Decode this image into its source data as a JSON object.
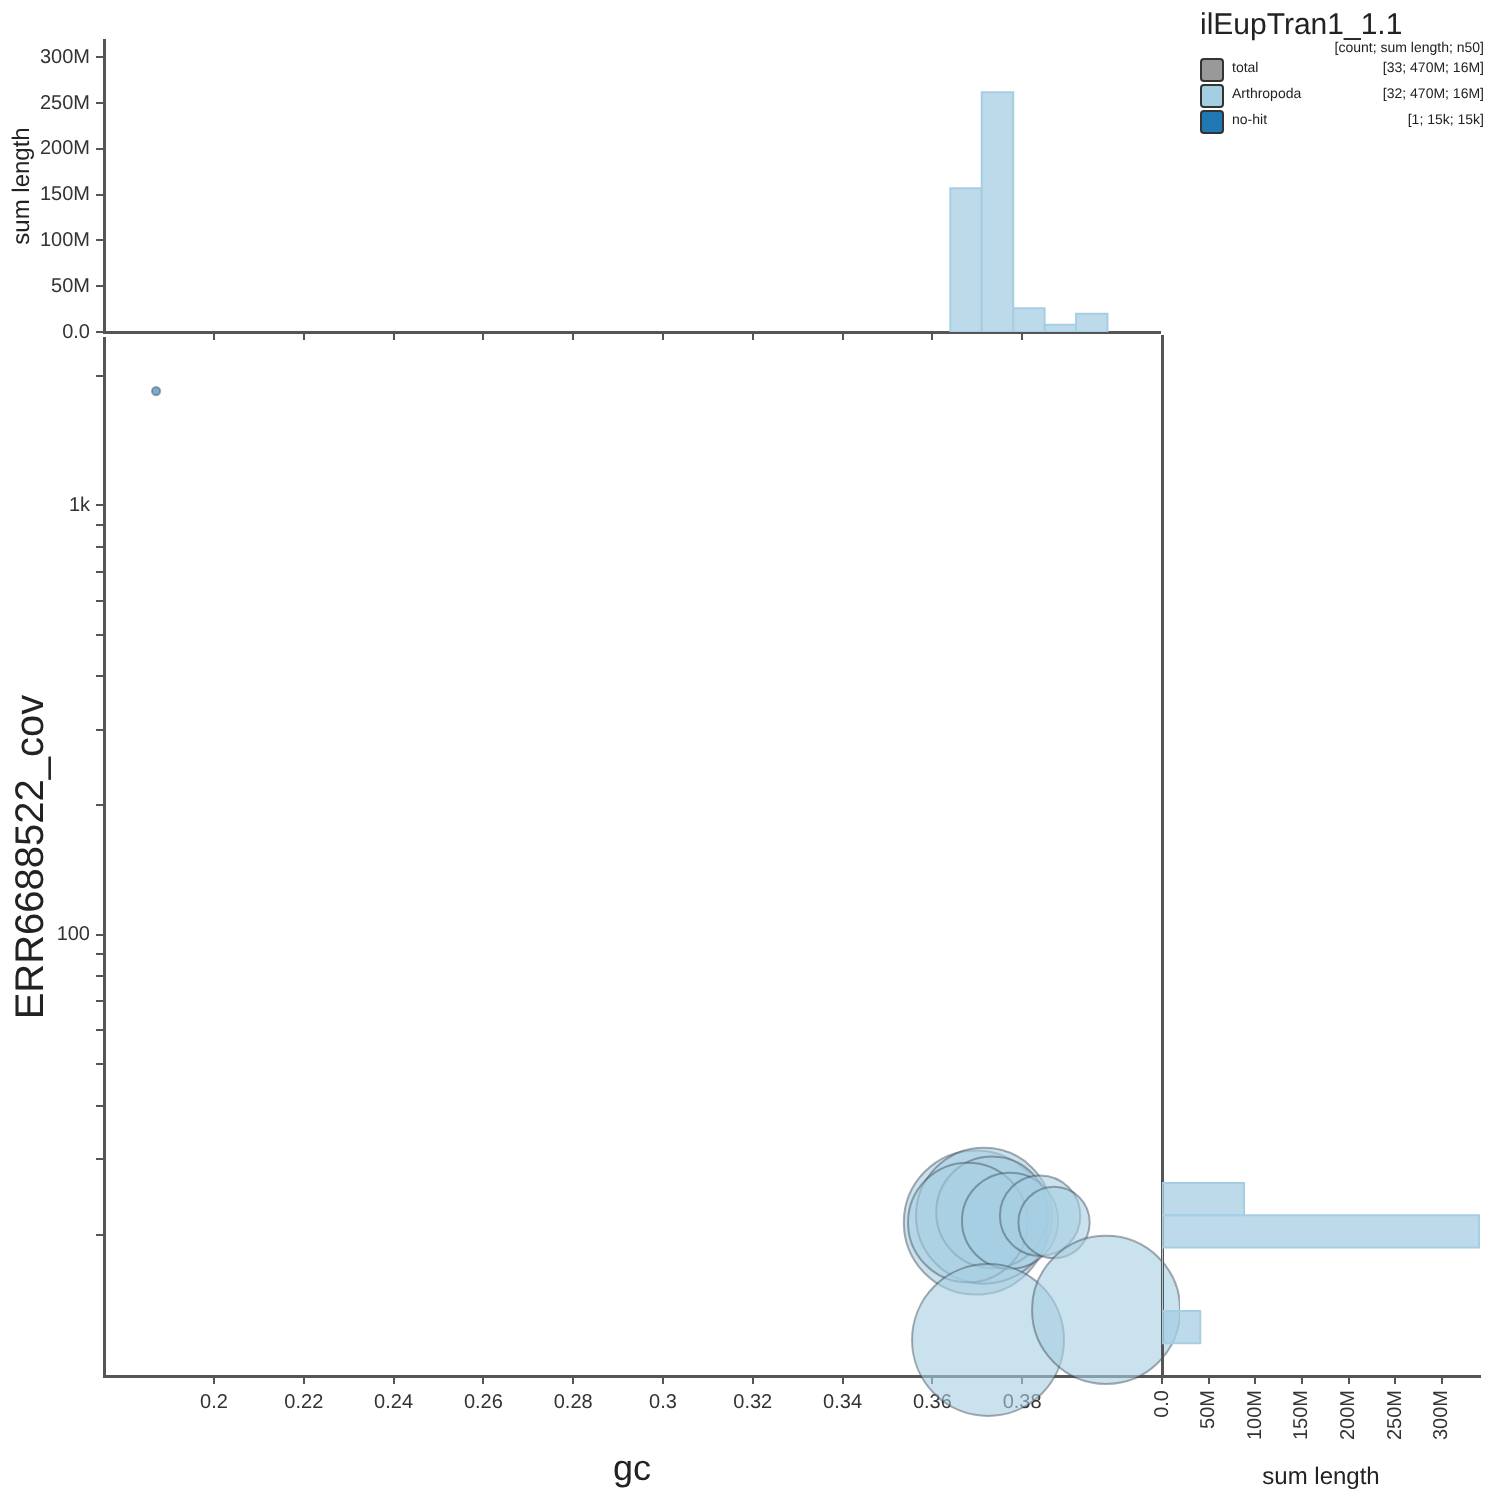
{
  "chart_data": [
    {
      "type": "histogram",
      "ylabel": "sum length",
      "color": "#a6cee3",
      "bins": [
        0.364,
        0.371,
        0.378,
        0.385,
        0.392,
        0.399
      ],
      "values": [
        157000000,
        262000000,
        26000000,
        8000000,
        20000000
      ],
      "xlim": [
        0.1755,
        0.4107
      ],
      "xticks": [
        0.2,
        0.22,
        0.24,
        0.26,
        0.28,
        0.3,
        0.32,
        0.34,
        0.36,
        0.38
      ],
      "ylim": [
        0,
        319000000
      ],
      "yticks": [
        {
          "value": 0,
          "label": "0.0"
        },
        {
          "value": 50000000,
          "label": "50M"
        },
        {
          "value": 100000000,
          "label": "100M"
        },
        {
          "value": 150000000,
          "label": "150M"
        },
        {
          "value": 200000000,
          "label": "200M"
        },
        {
          "value": 250000000,
          "label": "250M"
        },
        {
          "value": 300000000,
          "label": "300M"
        }
      ],
      "tick_labels": "y",
      "grid": false
    },
    {
      "type": "bubble",
      "xlabel": "gc",
      "ylabel": "ERR6688522_cov",
      "log": "y",
      "legend": "top right",
      "legend_title": "ilEupTran1_1.1",
      "annotations": [
        "[count; sum length; n50]",
        "[33; 470M; 16M]",
        "[32; 470M; 16M]",
        "[1; 15k; 15k]"
      ],
      "xlim": [
        0.1755,
        0.4107
      ],
      "xticks": [
        0.2,
        0.22,
        0.24,
        0.26,
        0.28,
        0.3,
        0.32,
        0.34,
        0.36,
        0.38
      ],
      "ylim": [
        9.4,
        2450
      ],
      "yticks": [
        {
          "value": 20,
          "label": null
        },
        {
          "value": 30,
          "label": null
        },
        {
          "value": 40,
          "label": null
        },
        {
          "value": 50,
          "label": null
        },
        {
          "value": 60,
          "label": null
        },
        {
          "value": 70,
          "label": null
        },
        {
          "value": 80,
          "label": null
        },
        {
          "value": 90,
          "label": null
        },
        100,
        {
          "value": 200,
          "label": null
        },
        {
          "value": 300,
          "label": null
        },
        {
          "value": 400,
          "label": null
        },
        {
          "value": 500,
          "label": null
        },
        {
          "value": 600,
          "label": null
        },
        {
          "value": 700,
          "label": null
        },
        {
          "value": 800,
          "label": null
        },
        {
          "value": 900,
          "label": null
        },
        {
          "value": 1000,
          "label": "1k"
        },
        {
          "value": 2000,
          "label": null
        }
      ],
      "grid": false,
      "series": [
        {
          "name": "total",
          "color": "#999999"
        },
        {
          "name": "Arthropoda",
          "color": "#a6cee3",
          "x": [
            0.3697,
            0.3715,
            0.3733,
            0.3679,
            0.3773,
            0.384,
            0.3871,
            0.3724,
            0.3987
          ],
          "values": [
            21.4,
            22.2,
            22.6,
            21.4,
            21.6,
            22.2,
            21.4,
            11.4,
            13.4
          ],
          "sizes": [
            0.9,
            0.8,
            0.54,
            0.62,
            0.4,
            0.28,
            0.22,
            1,
            0.95
          ]
        },
        {
          "name": "no-hit",
          "color": "#1f78b4",
          "x": [
            0.1871
          ],
          "values": [
            1843
          ],
          "sizes": [
            0.003
          ]
        }
      ]
    },
    {
      "type": "histogram",
      "orientation": "horizontal",
      "xlabel": "sum length",
      "color": "#a6cee3",
      "bins": [
        11.2,
        13.3,
        15.8,
        18.7,
        22.2,
        26.4
      ],
      "values": [
        41000000,
        0,
        0,
        340000000,
        88000000
      ],
      "log": "y",
      "ylim": [
        9.4,
        2450
      ],
      "xlim": [
        0,
        341000000
      ],
      "xticks": [
        {
          "value": 0,
          "label": "0.0"
        },
        {
          "value": 50000000,
          "label": "50M"
        },
        {
          "value": 100000000,
          "label": "100M"
        },
        {
          "value": 150000000,
          "label": "150M"
        },
        {
          "value": 200000000,
          "label": "200M"
        },
        {
          "value": 250000000,
          "label": "250M"
        },
        {
          "value": 300000000,
          "label": "300M"
        }
      ],
      "tick_labels": "x",
      "grid": false
    }
  ]
}
